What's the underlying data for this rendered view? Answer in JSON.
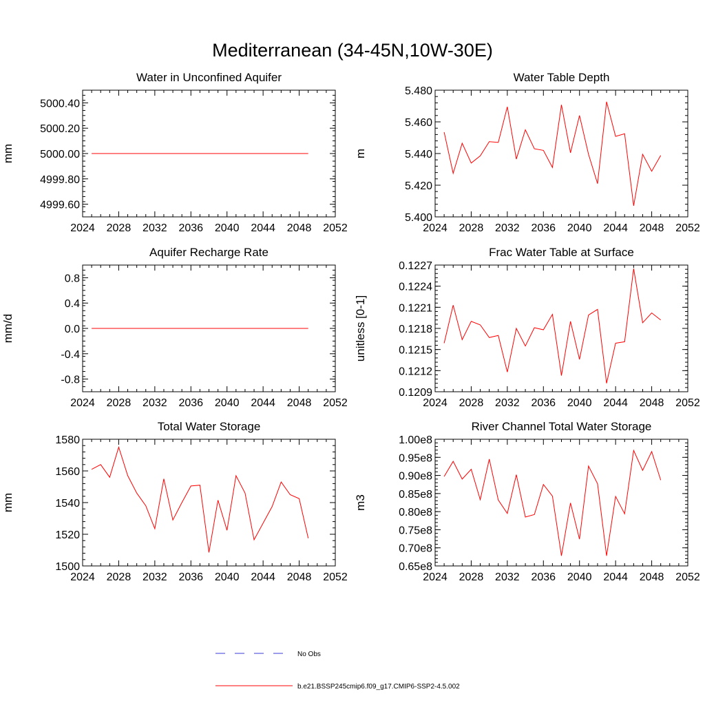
{
  "title": "Mediterranean (34-45N,10W-30E)",
  "legend": {
    "items": [
      {
        "label": "No Obs",
        "color": "#3a3ad8",
        "style": "dashed"
      },
      {
        "label": "b.e21.BSSP245cmip6.f09_g17.CMIP6-SSP2-4.5.002",
        "color": "#ff0000",
        "style": "solid"
      }
    ]
  },
  "chart_data": [
    {
      "type": "line",
      "title": "Water in Unconfined Aquifer",
      "ylabel": "mm",
      "xlim": [
        2024,
        2052
      ],
      "x_ticks": [
        "2024",
        "2028",
        "2032",
        "2036",
        "2040",
        "2044",
        "2048",
        "2052"
      ],
      "ylim": [
        4999.5,
        5000.5
      ],
      "y_ticks": [
        4999.6,
        4999.8,
        5000.0,
        5000.2,
        5000.4
      ],
      "y_tick_labels": [
        "4999.60",
        "4999.80",
        "5000.00",
        "5000.20",
        "5000.40"
      ],
      "y_minor_step": 0.04,
      "x": [
        2025,
        2026,
        2027,
        2028,
        2029,
        2030,
        2031,
        2032,
        2033,
        2034,
        2035,
        2036,
        2037,
        2038,
        2039,
        2040,
        2041,
        2042,
        2043,
        2044,
        2045,
        2046,
        2047,
        2048,
        2049
      ],
      "series": [
        {
          "values": [
            5000,
            5000,
            5000,
            5000,
            5000,
            5000,
            5000,
            5000,
            5000,
            5000,
            5000,
            5000,
            5000,
            5000,
            5000,
            5000,
            5000,
            5000,
            5000,
            5000,
            5000,
            5000,
            5000,
            5000,
            5000
          ]
        }
      ]
    },
    {
      "type": "line",
      "title": "Water Table Depth",
      "ylabel": "m",
      "xlim": [
        2024,
        2052
      ],
      "x_ticks": [
        "2024",
        "2028",
        "2032",
        "2036",
        "2040",
        "2044",
        "2048",
        "2052"
      ],
      "ylim": [
        5.4,
        5.48
      ],
      "y_ticks": [
        5.4,
        5.42,
        5.44,
        5.46,
        5.48
      ],
      "y_tick_labels": [
        "5.400",
        "5.420",
        "5.440",
        "5.460",
        "5.480"
      ],
      "y_minor_step": 0.004,
      "x": [
        2025,
        2026,
        2027,
        2028,
        2029,
        2030,
        2031,
        2032,
        2033,
        2034,
        2035,
        2036,
        2037,
        2038,
        2039,
        2040,
        2041,
        2042,
        2043,
        2044,
        2045,
        2046,
        2047,
        2048,
        2049
      ],
      "series": [
        {
          "values": [
            5.4535,
            5.4275,
            5.4465,
            5.434,
            5.4385,
            5.4475,
            5.447,
            5.4695,
            5.4365,
            5.455,
            5.443,
            5.442,
            5.4312,
            5.4708,
            5.4405,
            5.464,
            5.4395,
            5.421,
            5.4727,
            5.4508,
            5.4525,
            5.407,
            5.4395,
            5.4288,
            5.4388
          ]
        }
      ]
    },
    {
      "type": "line",
      "title": "Aquifer Recharge Rate",
      "ylabel": "mm/d",
      "xlim": [
        2024,
        2052
      ],
      "x_ticks": [
        "2024",
        "2028",
        "2032",
        "2036",
        "2040",
        "2044",
        "2048",
        "2052"
      ],
      "ylim": [
        -1.0,
        1.0
      ],
      "y_ticks": [
        -0.8,
        -0.4,
        0.0,
        0.4,
        0.8
      ],
      "y_tick_labels": [
        "-0.8",
        "-0.4",
        "0.0",
        "0.4",
        "0.8"
      ],
      "y_minor_step": 0.08,
      "x": [
        2025,
        2026,
        2027,
        2028,
        2029,
        2030,
        2031,
        2032,
        2033,
        2034,
        2035,
        2036,
        2037,
        2038,
        2039,
        2040,
        2041,
        2042,
        2043,
        2044,
        2045,
        2046,
        2047,
        2048,
        2049
      ],
      "series": [
        {
          "values": [
            0,
            0,
            0,
            0,
            0,
            0,
            0,
            0,
            0,
            0,
            0,
            0,
            0,
            0,
            0,
            0,
            0,
            0,
            0,
            0,
            0,
            0,
            0,
            0,
            0
          ]
        }
      ]
    },
    {
      "type": "line",
      "title": "Frac Water Table at Surface",
      "ylabel": "unitless [0-1]",
      "xlim": [
        2024,
        2052
      ],
      "x_ticks": [
        "2024",
        "2028",
        "2032",
        "2036",
        "2040",
        "2044",
        "2048",
        "2052"
      ],
      "ylim": [
        0.1209,
        0.1227
      ],
      "y_ticks": [
        0.1209,
        0.1212,
        0.1215,
        0.1218,
        0.1221,
        0.1224,
        0.1227
      ],
      "y_tick_labels": [
        "0.1209",
        "0.1212",
        "0.1215",
        "0.1218",
        "0.1221",
        "0.1224",
        "0.1227"
      ],
      "y_minor_step": 6e-05,
      "x": [
        2025,
        2026,
        2027,
        2028,
        2029,
        2030,
        2031,
        2032,
        2033,
        2034,
        2035,
        2036,
        2037,
        2038,
        2039,
        2040,
        2041,
        2042,
        2043,
        2044,
        2045,
        2046,
        2047,
        2048,
        2049
      ],
      "series": [
        {
          "values": [
            0.12159,
            0.12213,
            0.12164,
            0.1219,
            0.12185,
            0.12167,
            0.1217,
            0.12118,
            0.1218,
            0.12155,
            0.12181,
            0.12178,
            0.122,
            0.12113,
            0.1219,
            0.12136,
            0.12199,
            0.12207,
            0.12102,
            0.12159,
            0.12161,
            0.12265,
            0.12188,
            0.12202,
            0.12192
          ]
        }
      ]
    },
    {
      "type": "line",
      "title": "Total Water Storage",
      "ylabel": "mm",
      "xlim": [
        2024,
        2052
      ],
      "x_ticks": [
        "2024",
        "2028",
        "2032",
        "2036",
        "2040",
        "2044",
        "2048",
        "2052"
      ],
      "ylim": [
        1500,
        1580
      ],
      "y_ticks": [
        1500,
        1520,
        1540,
        1560,
        1580
      ],
      "y_tick_labels": [
        "1500",
        "1520",
        "1540",
        "1560",
        "1580"
      ],
      "y_minor_step": 4,
      "x": [
        2025,
        2026,
        2027,
        2028,
        2029,
        2030,
        2031,
        2032,
        2033,
        2034,
        2035,
        2036,
        2037,
        2038,
        2039,
        2040,
        2041,
        2042,
        2043,
        2044,
        2045,
        2046,
        2047,
        2048,
        2049
      ],
      "series": [
        {
          "values": [
            1561,
            1564,
            1556,
            1575,
            1557,
            1546,
            1538,
            1523.5,
            1555,
            1529,
            1540,
            1550.5,
            1551,
            1508.5,
            1541.5,
            1522.5,
            1557,
            1546,
            1516.5,
            1527,
            1537.5,
            1553,
            1545,
            1542.5,
            1517.5
          ]
        }
      ]
    },
    {
      "type": "line",
      "title": "River Channel Total Water Storage",
      "ylabel": "m3",
      "xlim": [
        2024,
        2052
      ],
      "x_ticks": [
        "2024",
        "2028",
        "2032",
        "2036",
        "2040",
        "2044",
        "2048",
        "2052"
      ],
      "ylim": [
        65000000.0,
        100000000.0
      ],
      "y_ticks": [
        65000000.0,
        70000000.0,
        75000000.0,
        80000000.0,
        85000000.0,
        90000000.0,
        95000000.0,
        100000000.0
      ],
      "y_tick_labels": [
        "0.65e8",
        "0.70e8",
        "0.75e8",
        "0.80e8",
        "0.85e8",
        "0.90e8",
        "0.95e8",
        "1.00e8"
      ],
      "y_minor_step": 1000000.0,
      "x": [
        2025,
        2026,
        2027,
        2028,
        2029,
        2030,
        2031,
        2032,
        2033,
        2034,
        2035,
        2036,
        2037,
        2038,
        2039,
        2040,
        2041,
        2042,
        2043,
        2044,
        2045,
        2046,
        2047,
        2048,
        2049
      ],
      "series": [
        {
          "values": [
            89700000.0,
            93900000.0,
            89000000.0,
            91700000.0,
            83300000.0,
            94500000.0,
            83200000.0,
            79500000.0,
            90200000.0,
            78500000.0,
            79200000.0,
            87500000.0,
            84300000.0,
            67800000.0,
            82400000.0,
            72400000.0,
            92600000.0,
            87700000.0,
            67800000.0,
            84200000.0,
            79400000.0,
            96900000.0,
            91400000.0,
            96600000.0,
            88700000.0
          ]
        }
      ]
    }
  ]
}
